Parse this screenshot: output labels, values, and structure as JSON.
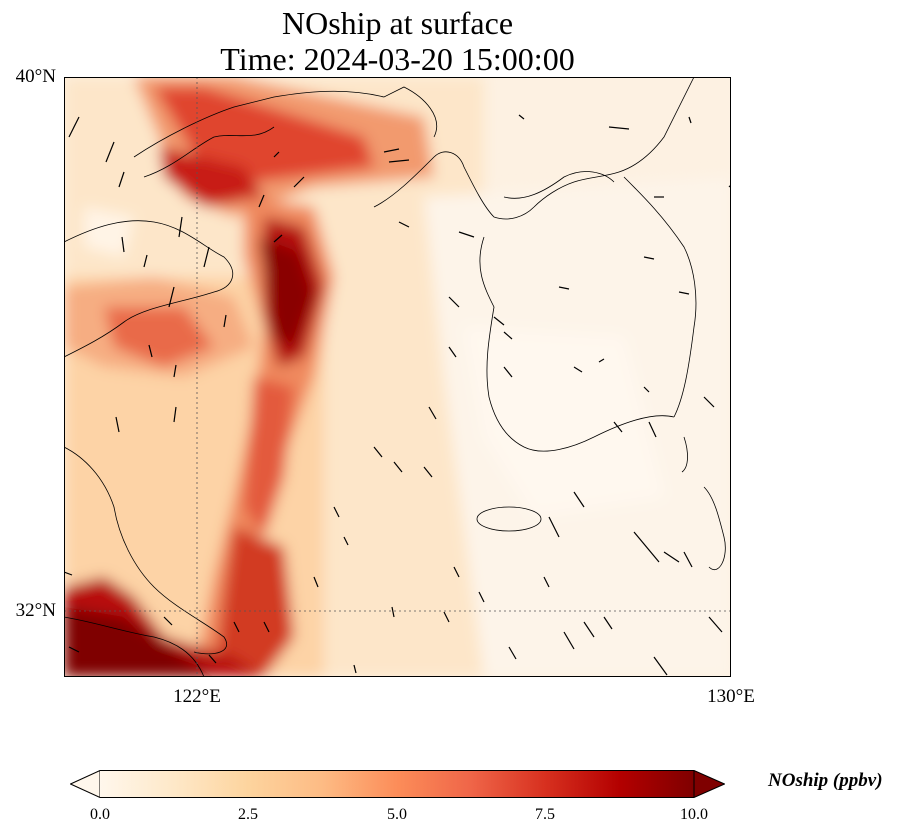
{
  "title": {
    "line1": "NOship at surface",
    "line2": "Time: 2024-03-20 15:00:00"
  },
  "axes": {
    "lat_labels": [
      "40°N",
      "32°N"
    ],
    "lon_labels": [
      "122°E",
      "130°E"
    ]
  },
  "colorbar": {
    "label": "NOship (ppbv)",
    "ticks": [
      "0.0",
      "2.5",
      "5.0",
      "7.5",
      "10.0"
    ],
    "min": 0,
    "max": 10,
    "colormap": "OrRd",
    "colors": [
      "#fff7ec",
      "#fee8c8",
      "#fdd49e",
      "#fdbb84",
      "#fc8d59",
      "#ef6548",
      "#d7301f",
      "#b30000",
      "#7f0000"
    ],
    "extend": "both"
  },
  "map": {
    "lon_range": [
      120,
      130
    ],
    "lat_range": [
      31,
      40
    ],
    "gridlines": "dotted",
    "features": [
      "coastlines",
      "borders",
      "wind-vectors"
    ]
  }
}
